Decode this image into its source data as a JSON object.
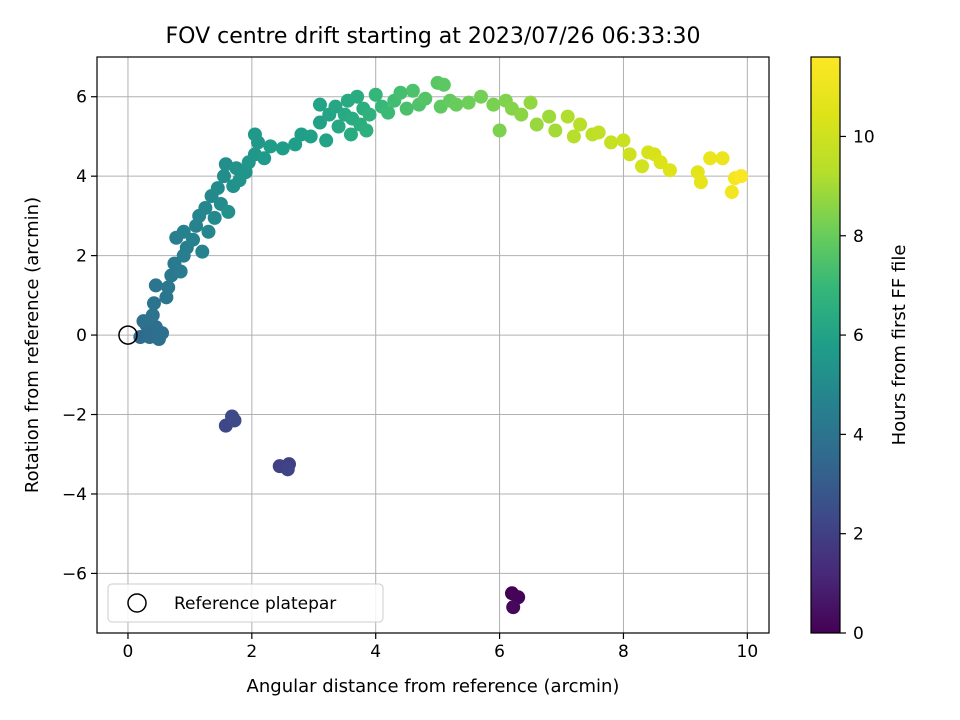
{
  "chart_data": {
    "type": "scatter",
    "title": "FOV centre drift starting at 2023/07/26 06:33:30",
    "xlabel": "Angular distance from reference (arcmin)",
    "ylabel": "Rotation from reference (arcmin)",
    "xlim": [
      -0.5,
      10.35
    ],
    "ylim": [
      -7.5,
      7.0
    ],
    "xticks": [
      0,
      2,
      4,
      6,
      8,
      10
    ],
    "yticks": [
      -6,
      -4,
      -2,
      0,
      2,
      4,
      6
    ],
    "xtick_labels": [
      "0",
      "2",
      "4",
      "6",
      "8",
      "10"
    ],
    "ytick_labels": [
      "−6",
      "−4",
      "−2",
      "0",
      "2",
      "4",
      "6"
    ],
    "grid": true,
    "colormap": "viridis",
    "colorbar": {
      "label": "Hours from first FF file",
      "range": [
        0,
        11.6
      ],
      "ticks": [
        0,
        2,
        4,
        6,
        8,
        10
      ],
      "tick_labels": [
        "0",
        "2",
        "4",
        "6",
        "8",
        "10"
      ]
    },
    "legend": {
      "placement": "lower-left",
      "entries": [
        "Reference platepar"
      ]
    },
    "reference_point": {
      "x": 0,
      "y": 0,
      "marker": "open circle",
      "color": "#000000"
    },
    "series": [
      {
        "points": [
          {
            "x": 6.2,
            "y": -6.5,
            "c": 0.0
          },
          {
            "x": 6.3,
            "y": -6.6,
            "c": 0.1
          },
          {
            "x": 6.22,
            "y": -6.85,
            "c": 0.2
          },
          {
            "x": 2.45,
            "y": -3.3,
            "c": 2.0
          },
          {
            "x": 2.6,
            "y": -3.25,
            "c": 2.05
          },
          {
            "x": 2.58,
            "y": -3.38,
            "c": 2.1
          },
          {
            "x": 1.58,
            "y": -2.28,
            "c": 2.3
          },
          {
            "x": 1.68,
            "y": -2.05,
            "c": 2.35
          },
          {
            "x": 1.72,
            "y": -2.15,
            "c": 2.4
          },
          {
            "x": 0.2,
            "y": -0.05,
            "c": 3.6
          },
          {
            "x": 0.3,
            "y": 0.25,
            "c": 3.65
          },
          {
            "x": 0.35,
            "y": -0.05,
            "c": 3.7
          },
          {
            "x": 0.45,
            "y": 0.2,
            "c": 3.75
          },
          {
            "x": 0.5,
            "y": -0.1,
            "c": 3.8
          },
          {
            "x": 0.55,
            "y": 0.05,
            "c": 3.85
          },
          {
            "x": 0.25,
            "y": 0.35,
            "c": 3.9
          },
          {
            "x": 0.4,
            "y": 0.5,
            "c": 3.95
          },
          {
            "x": 0.42,
            "y": 0.8,
            "c": 4.0
          },
          {
            "x": 0.45,
            "y": 1.25,
            "c": 4.05
          },
          {
            "x": 0.62,
            "y": 0.95,
            "c": 4.1
          },
          {
            "x": 0.65,
            "y": 1.2,
            "c": 4.15
          },
          {
            "x": 0.7,
            "y": 1.5,
            "c": 4.2
          },
          {
            "x": 0.75,
            "y": 1.8,
            "c": 4.3
          },
          {
            "x": 0.85,
            "y": 1.6,
            "c": 4.35
          },
          {
            "x": 0.9,
            "y": 2.0,
            "c": 4.4
          },
          {
            "x": 0.78,
            "y": 2.45,
            "c": 4.45
          },
          {
            "x": 0.95,
            "y": 2.2,
            "c": 4.5
          },
          {
            "x": 0.9,
            "y": 2.6,
            "c": 4.55
          },
          {
            "x": 1.05,
            "y": 2.4,
            "c": 4.6
          },
          {
            "x": 1.1,
            "y": 2.75,
            "c": 4.65
          },
          {
            "x": 1.2,
            "y": 2.1,
            "c": 4.7
          },
          {
            "x": 1.15,
            "y": 3.0,
            "c": 4.75
          },
          {
            "x": 1.25,
            "y": 3.2,
            "c": 4.8
          },
          {
            "x": 1.3,
            "y": 2.6,
            "c": 4.85
          },
          {
            "x": 1.35,
            "y": 3.5,
            "c": 4.9
          },
          {
            "x": 1.4,
            "y": 2.95,
            "c": 4.95
          },
          {
            "x": 1.45,
            "y": 3.7,
            "c": 5.0
          },
          {
            "x": 1.5,
            "y": 3.3,
            "c": 5.05
          },
          {
            "x": 1.55,
            "y": 4.0,
            "c": 5.1
          },
          {
            "x": 1.58,
            "y": 4.3,
            "c": 5.15
          },
          {
            "x": 1.62,
            "y": 3.1,
            "c": 5.2
          },
          {
            "x": 1.7,
            "y": 3.75,
            "c": 5.25
          },
          {
            "x": 1.75,
            "y": 4.2,
            "c": 5.3
          },
          {
            "x": 1.8,
            "y": 3.9,
            "c": 5.35
          },
          {
            "x": 1.9,
            "y": 4.1,
            "c": 5.4
          },
          {
            "x": 1.95,
            "y": 4.35,
            "c": 5.45
          },
          {
            "x": 2.05,
            "y": 4.55,
            "c": 5.5
          },
          {
            "x": 2.1,
            "y": 4.85,
            "c": 5.55
          },
          {
            "x": 2.05,
            "y": 5.05,
            "c": 5.6
          },
          {
            "x": 2.2,
            "y": 4.45,
            "c": 5.65
          },
          {
            "x": 2.3,
            "y": 4.75,
            "c": 5.7
          },
          {
            "x": 2.5,
            "y": 4.7,
            "c": 5.75
          },
          {
            "x": 2.7,
            "y": 4.8,
            "c": 5.8
          },
          {
            "x": 2.8,
            "y": 5.05,
            "c": 5.85
          },
          {
            "x": 2.95,
            "y": 5.0,
            "c": 5.9
          },
          {
            "x": 3.1,
            "y": 5.35,
            "c": 5.95
          },
          {
            "x": 3.2,
            "y": 4.9,
            "c": 6.0
          },
          {
            "x": 3.1,
            "y": 5.8,
            "c": 6.05
          },
          {
            "x": 3.25,
            "y": 5.55,
            "c": 6.1
          },
          {
            "x": 3.35,
            "y": 5.75,
            "c": 6.15
          },
          {
            "x": 3.4,
            "y": 5.25,
            "c": 6.2
          },
          {
            "x": 3.5,
            "y": 5.55,
            "c": 6.25
          },
          {
            "x": 3.55,
            "y": 5.9,
            "c": 6.3
          },
          {
            "x": 3.6,
            "y": 5.05,
            "c": 6.35
          },
          {
            "x": 3.62,
            "y": 5.45,
            "c": 6.4
          },
          {
            "x": 3.7,
            "y": 6.0,
            "c": 6.45
          },
          {
            "x": 3.75,
            "y": 5.3,
            "c": 6.5
          },
          {
            "x": 3.8,
            "y": 5.7,
            "c": 6.55
          },
          {
            "x": 3.85,
            "y": 5.15,
            "c": 6.6
          },
          {
            "x": 3.9,
            "y": 5.55,
            "c": 6.65
          },
          {
            "x": 4.0,
            "y": 6.05,
            "c": 6.9
          },
          {
            "x": 4.1,
            "y": 5.75,
            "c": 7.0
          },
          {
            "x": 4.2,
            "y": 5.6,
            "c": 7.1
          },
          {
            "x": 4.3,
            "y": 5.9,
            "c": 7.2
          },
          {
            "x": 4.4,
            "y": 6.1,
            "c": 7.3
          },
          {
            "x": 4.5,
            "y": 5.7,
            "c": 7.4
          },
          {
            "x": 4.6,
            "y": 6.15,
            "c": 7.45
          },
          {
            "x": 4.7,
            "y": 5.8,
            "c": 7.5
          },
          {
            "x": 4.8,
            "y": 5.95,
            "c": 7.6
          },
          {
            "x": 5.0,
            "y": 6.35,
            "c": 7.7
          },
          {
            "x": 5.1,
            "y": 6.3,
            "c": 7.75
          },
          {
            "x": 5.05,
            "y": 5.75,
            "c": 7.8
          },
          {
            "x": 5.2,
            "y": 5.9,
            "c": 7.9
          },
          {
            "x": 5.3,
            "y": 5.8,
            "c": 8.0
          },
          {
            "x": 5.5,
            "y": 5.85,
            "c": 8.1
          },
          {
            "x": 5.7,
            "y": 6.0,
            "c": 8.2
          },
          {
            "x": 5.9,
            "y": 5.8,
            "c": 8.3
          },
          {
            "x": 6.0,
            "y": 5.15,
            "c": 8.35
          },
          {
            "x": 6.1,
            "y": 5.9,
            "c": 8.4
          },
          {
            "x": 6.2,
            "y": 5.7,
            "c": 8.5
          },
          {
            "x": 6.35,
            "y": 5.55,
            "c": 8.6
          },
          {
            "x": 6.5,
            "y": 5.85,
            "c": 8.7
          },
          {
            "x": 6.6,
            "y": 5.3,
            "c": 8.8
          },
          {
            "x": 6.8,
            "y": 5.5,
            "c": 8.9
          },
          {
            "x": 6.9,
            "y": 5.15,
            "c": 9.0
          },
          {
            "x": 7.1,
            "y": 5.5,
            "c": 9.2
          },
          {
            "x": 7.2,
            "y": 5.0,
            "c": 9.3
          },
          {
            "x": 7.3,
            "y": 5.3,
            "c": 9.4
          },
          {
            "x": 7.5,
            "y": 5.05,
            "c": 9.5
          },
          {
            "x": 7.6,
            "y": 5.1,
            "c": 9.6
          },
          {
            "x": 7.8,
            "y": 4.85,
            "c": 9.8
          },
          {
            "x": 8.0,
            "y": 4.9,
            "c": 9.9
          },
          {
            "x": 8.1,
            "y": 4.55,
            "c": 10.0
          },
          {
            "x": 8.3,
            "y": 4.25,
            "c": 10.1
          },
          {
            "x": 8.4,
            "y": 4.6,
            "c": 10.2
          },
          {
            "x": 8.5,
            "y": 4.55,
            "c": 10.3
          },
          {
            "x": 8.6,
            "y": 4.35,
            "c": 10.4
          },
          {
            "x": 8.75,
            "y": 4.15,
            "c": 10.5
          },
          {
            "x": 9.2,
            "y": 4.1,
            "c": 10.7
          },
          {
            "x": 9.25,
            "y": 3.85,
            "c": 10.8
          },
          {
            "x": 9.4,
            "y": 4.45,
            "c": 10.9
          },
          {
            "x": 9.6,
            "y": 4.45,
            "c": 11.0
          },
          {
            "x": 9.75,
            "y": 3.6,
            "c": 11.2
          },
          {
            "x": 9.8,
            "y": 3.95,
            "c": 11.3
          },
          {
            "x": 9.9,
            "y": 4.0,
            "c": 11.5
          }
        ]
      }
    ]
  }
}
